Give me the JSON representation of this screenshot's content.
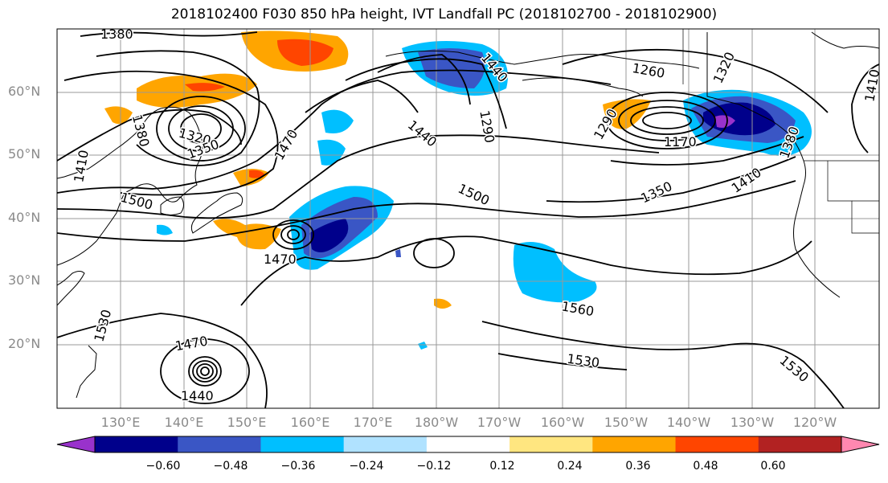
{
  "title": "2018102400 F030 850 hPa height, IVT Landfall PC (2018102700 - 2018102900)",
  "lat_labels": [
    "60°N",
    "50°N",
    "40°N",
    "30°N",
    "20°N"
  ],
  "lon_labels": [
    "130°E",
    "140°E",
    "150°E",
    "160°E",
    "170°E",
    "180°W",
    "170°W",
    "160°W",
    "150°W",
    "140°W",
    "130°W",
    "120°W"
  ],
  "contour_labels": [
    "1380",
    "1380",
    "1320",
    "1350",
    "1410",
    "1470",
    "1500",
    "1470",
    "1440",
    "1470",
    "1440",
    "1530",
    "1290",
    "1440",
    "1500",
    "1560",
    "1530",
    "1530",
    "1260",
    "1320",
    "1410",
    "1290",
    "1170",
    "1350",
    "1410",
    "1380"
  ],
  "colorbar": {
    "ticks": [
      "−0.60",
      "−0.48",
      "−0.36",
      "−0.24",
      "−0.12",
      "0.12",
      "0.24",
      "0.36",
      "0.48",
      "0.60"
    ],
    "colors": [
      "#9932cc",
      "#00008b",
      "#3a56c5",
      "#00bfff",
      "#b0e2ff",
      "#ffffff",
      "#ffe680",
      "#ffa500",
      "#ff4500",
      "#b22222",
      "#ff88b0"
    ]
  }
}
